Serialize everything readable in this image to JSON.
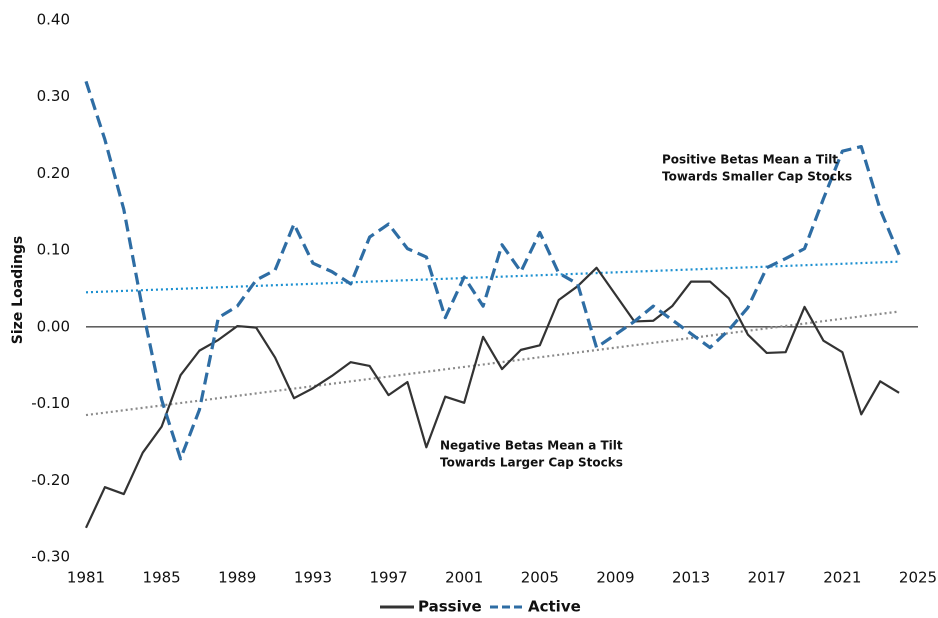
{
  "chart_data": {
    "type": "line",
    "ylabel": "Size Loadings",
    "x": [
      1981,
      1982,
      1983,
      1984,
      1985,
      1986,
      1987,
      1988,
      1989,
      1990,
      1991,
      1992,
      1993,
      1994,
      1995,
      1996,
      1997,
      1998,
      1999,
      2000,
      2001,
      2002,
      2003,
      2004,
      2005,
      2006,
      2007,
      2008,
      2009,
      2010,
      2011,
      2012,
      2013,
      2014,
      2015,
      2016,
      2017,
      2018,
      2019,
      2020,
      2021,
      2022,
      2023,
      2024
    ],
    "series": [
      {
        "name": "Passive",
        "color": "#333333",
        "dash": "solid",
        "values": [
          -0.262,
          -0.209,
          -0.218,
          -0.164,
          -0.13,
          -0.063,
          -0.031,
          -0.017,
          0.001,
          -0.001,
          -0.04,
          -0.093,
          -0.08,
          -0.064,
          -0.046,
          -0.051,
          -0.089,
          -0.072,
          -0.157,
          -0.091,
          -0.099,
          -0.013,
          -0.055,
          -0.03,
          -0.024,
          0.035,
          0.053,
          0.077,
          0.042,
          0.007,
          0.008,
          0.027,
          0.059,
          0.059,
          0.037,
          -0.01,
          -0.034,
          -0.033,
          0.026,
          -0.018,
          -0.033,
          -0.114,
          -0.071,
          -0.086
        ]
      },
      {
        "name": "Active",
        "color": "#2e6da4",
        "dash": "dashed",
        "values": [
          0.32,
          0.244,
          0.153,
          0.022,
          -0.095,
          -0.172,
          -0.108,
          0.012,
          0.027,
          0.061,
          0.074,
          0.134,
          0.083,
          0.072,
          0.056,
          0.117,
          0.134,
          0.102,
          0.091,
          0.012,
          0.065,
          0.027,
          0.107,
          0.072,
          0.123,
          0.07,
          0.056,
          -0.027,
          -0.01,
          0.007,
          0.027,
          0.009,
          -0.009,
          -0.027,
          -0.004,
          0.025,
          0.077,
          0.089,
          0.102,
          0.167,
          0.229,
          0.235,
          0.153,
          0.094
        ]
      }
    ],
    "trendlines": [
      {
        "x": [
          1981,
          2024
        ],
        "values": [
          -0.115,
          0.02
        ],
        "color": "#8a8a8a"
      },
      {
        "x": [
          1981,
          2024
        ],
        "values": [
          0.045,
          0.085
        ],
        "color": "#1a8fd0"
      }
    ],
    "annotations": [
      {
        "lines": [
          "Positive Betas Mean a Tilt",
          "Towards Smaller Cap Stocks"
        ],
        "color": "#1f6fb0"
      },
      {
        "lines": [
          "Negative Betas Mean a Tilt",
          "Towards Larger Cap Stocks"
        ],
        "color": "#222222"
      }
    ],
    "xlim": [
      1981,
      2025
    ],
    "xticks": [
      1981,
      1985,
      1989,
      1993,
      1997,
      2001,
      2005,
      2009,
      2013,
      2017,
      2021,
      2025
    ],
    "ylim": [
      -0.3,
      0.4
    ],
    "yticks": [
      {
        "value": -0.3,
        "label": "-0.30"
      },
      {
        "value": -0.2,
        "label": "-0.20"
      },
      {
        "value": -0.1,
        "label": "-0.10"
      },
      {
        "value": 0,
        "label": "0.00"
      },
      {
        "value": 0.1,
        "label": "0.10"
      },
      {
        "value": 0.2,
        "label": "0.20"
      },
      {
        "value": 0.3,
        "label": "0.30"
      },
      {
        "value": 0.4,
        "label": "0.40"
      }
    ],
    "zero_line": true,
    "legend": "bottom"
  }
}
